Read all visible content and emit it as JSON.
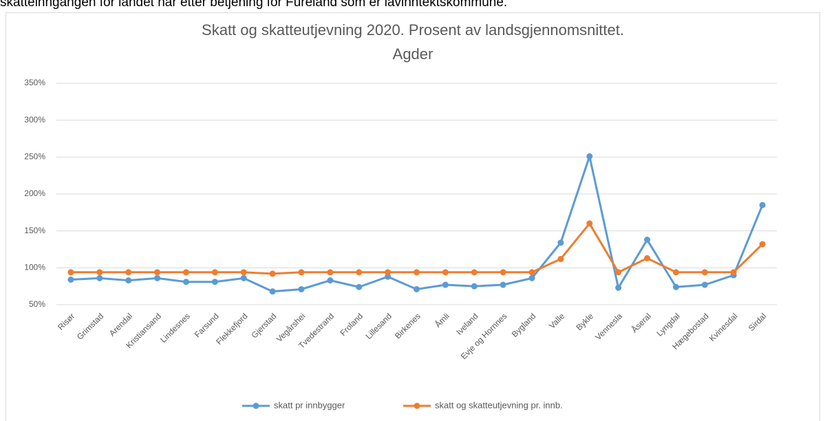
{
  "document_text": "skatteinngangen for landet når etter betjening for Fureland som er lavinntektskommune.",
  "chart_data": {
    "type": "line",
    "title": "Skatt og skatteutjevning 2020. Prosent av landsgjennomsnittet.",
    "subtitle": "Agder",
    "categories": [
      "Risør",
      "Grimstad",
      "Arendal",
      "Kristiansand",
      "Lindesnes",
      "Farsund",
      "Flekkefjord",
      "Gjerstad",
      "Vegårshei",
      "Tvedestrand",
      "Froland",
      "Lillesand",
      "Birkenes",
      "Åmli",
      "Iveland",
      "Evje og Hornnes",
      "Bygland",
      "Valle",
      "Bykle",
      "Vennesla",
      "Åseral",
      "Lyngdal",
      "Hægebostad",
      "Kvinesdal",
      "Sirdal"
    ],
    "series": [
      {
        "name": "skatt pr innbygger",
        "color": "#5b9bd5",
        "values": [
          84,
          86,
          83,
          86,
          81,
          81,
          86,
          68,
          71,
          83,
          74,
          88,
          71,
          77,
          75,
          77,
          86,
          134,
          251,
          73,
          138,
          74,
          77,
          90,
          185
        ]
      },
      {
        "name": "skatt og skatteutjevning pr. innb.",
        "color": "#ed7d31",
        "values": [
          94,
          94,
          94,
          94,
          94,
          94,
          94,
          92,
          94,
          94,
          94,
          94,
          94,
          94,
          94,
          94,
          94,
          112,
          160,
          94,
          113,
          94,
          94,
          94,
          132
        ]
      }
    ],
    "ylim": [
      50,
      350
    ],
    "yticks": [
      {
        "value": 50,
        "label": "50%"
      },
      {
        "value": 100,
        "label": "100%"
      },
      {
        "value": 150,
        "label": "150%"
      },
      {
        "value": 200,
        "label": "200%"
      },
      {
        "value": 250,
        "label": "250%"
      },
      {
        "value": 300,
        "label": "300%"
      },
      {
        "value": 350,
        "label": "350%"
      }
    ],
    "grid": true,
    "legend": "bottom"
  }
}
